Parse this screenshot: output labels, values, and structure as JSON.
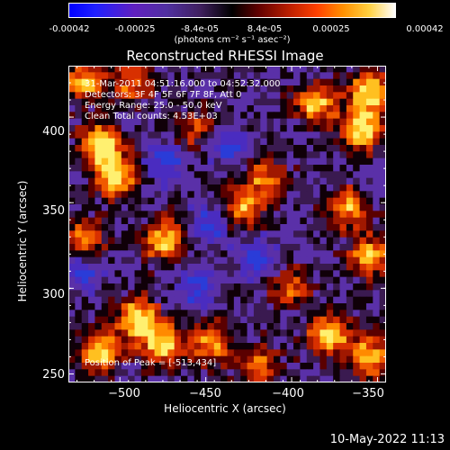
{
  "colorbar": {
    "ticks": [
      "-0.00042",
      "-0.00025",
      "-8.4e-05",
      "8.4e-05",
      "0.00025",
      "0.00042"
    ],
    "units": "(photons cm⁻² s⁻¹ asec⁻²)"
  },
  "chart_data": {
    "type": "heatmap",
    "title": "Reconstructed RHESSI Image",
    "xlabel": "Heliocentric X (arcsec)",
    "ylabel": "Heliocentric Y (arcsec)",
    "xlim": [
      -530,
      -345
    ],
    "ylim": [
      245,
      430
    ],
    "xticks": [
      -500,
      -450,
      -400,
      -350
    ],
    "yticks": [
      250,
      300,
      350,
      400
    ],
    "xtick_labels": [
      "−500",
      "−450",
      "−400",
      "−350"
    ],
    "ytick_labels": [
      "250",
      "300",
      "350",
      "400"
    ],
    "colorbar_range": [
      -0.00042,
      0.00042
    ],
    "annotations": [
      "31-Mar-2011 04:51:16.000 to 04:52:32.000",
      "Detectors: 3F 4F 5F 6F 7F 8F, Att 0",
      "Energy Range: 25.0 - 50.0 keV",
      "Clean     Total counts: 4.53E+03"
    ],
    "peak_label": "Position of Peak = [-513,434]",
    "peak_position": [
      -513,
      434
    ]
  },
  "footer": {
    "date": "10-May-2022 11:13"
  }
}
